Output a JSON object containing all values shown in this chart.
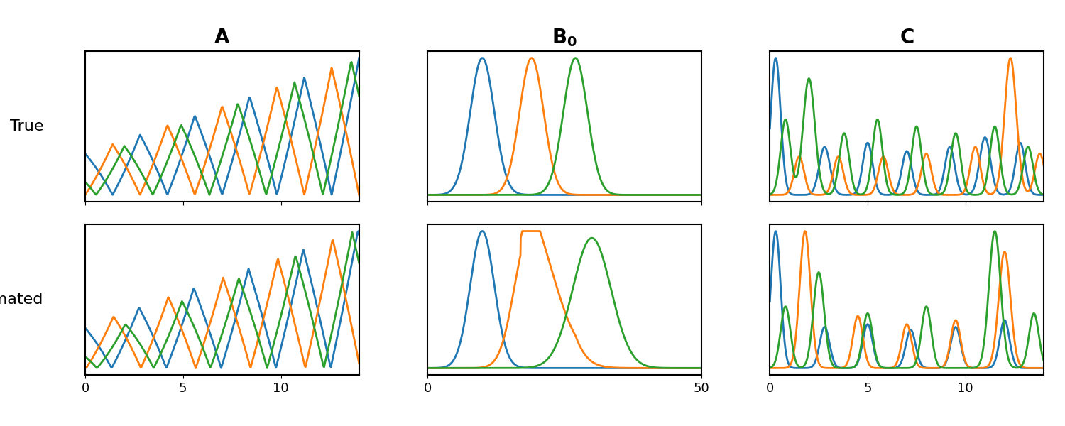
{
  "colors": [
    "#1f77b4",
    "#ff7f0e",
    "#2ca02c"
  ],
  "linewidth": 2.0,
  "col_title_fontsize": 20,
  "row_label_fontsize": 16,
  "tick_fontsize": 13,
  "figsize": [
    15.0,
    6.0
  ],
  "dpi": 100
}
